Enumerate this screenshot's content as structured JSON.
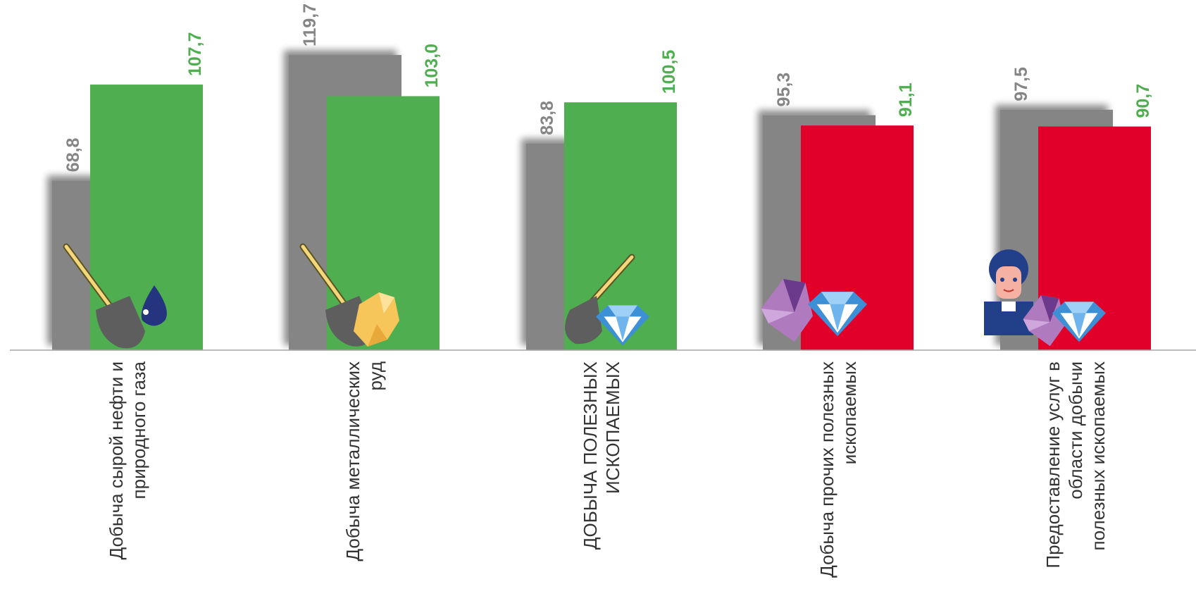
{
  "chart_data": {
    "type": "bar",
    "categories": [
      [
        "Добыча сырой нефти и",
        "природного газа"
      ],
      [
        "Добыча металлических",
        "руд"
      ],
      [
        "ДОБЫЧА ПОЛЕЗНЫХ",
        "ИСКОПАЕМЫХ"
      ],
      [
        "Добыча прочих полезных",
        "ископаемых"
      ],
      [
        "Предоставление услуг в",
        "области добычи",
        "полезных ископаемых"
      ]
    ],
    "series": [
      {
        "values": [
          68.8,
          119.7,
          83.8,
          95.3,
          97.5
        ],
        "labels": [
          "68,8",
          "119,7",
          "83,8",
          "95,3",
          "97,5"
        ],
        "color": "#858585"
      },
      {
        "values": [
          107.7,
          103.0,
          100.5,
          91.1,
          90.7
        ],
        "labels": [
          "107,7",
          "103,0",
          "100,5",
          "91,1",
          "90,7"
        ],
        "colors": [
          "#4fae4f",
          "#4fae4f",
          "#4fae4f",
          "#e0002a",
          "#e0002a"
        ],
        "label_colors": [
          "#4fae4f",
          "#4fae4f",
          "#4fae4f",
          "#4fae4f",
          "#4fae4f"
        ]
      }
    ],
    "icons": [
      "shovel-oil-drop-icon",
      "shovel-ore-nugget-icon",
      "shovel-diamond-icon",
      "crystals-diamond-icon",
      "worker-diamond-icon"
    ],
    "ylim": [
      0,
      130
    ],
    "grid": false,
    "legend": "none"
  }
}
